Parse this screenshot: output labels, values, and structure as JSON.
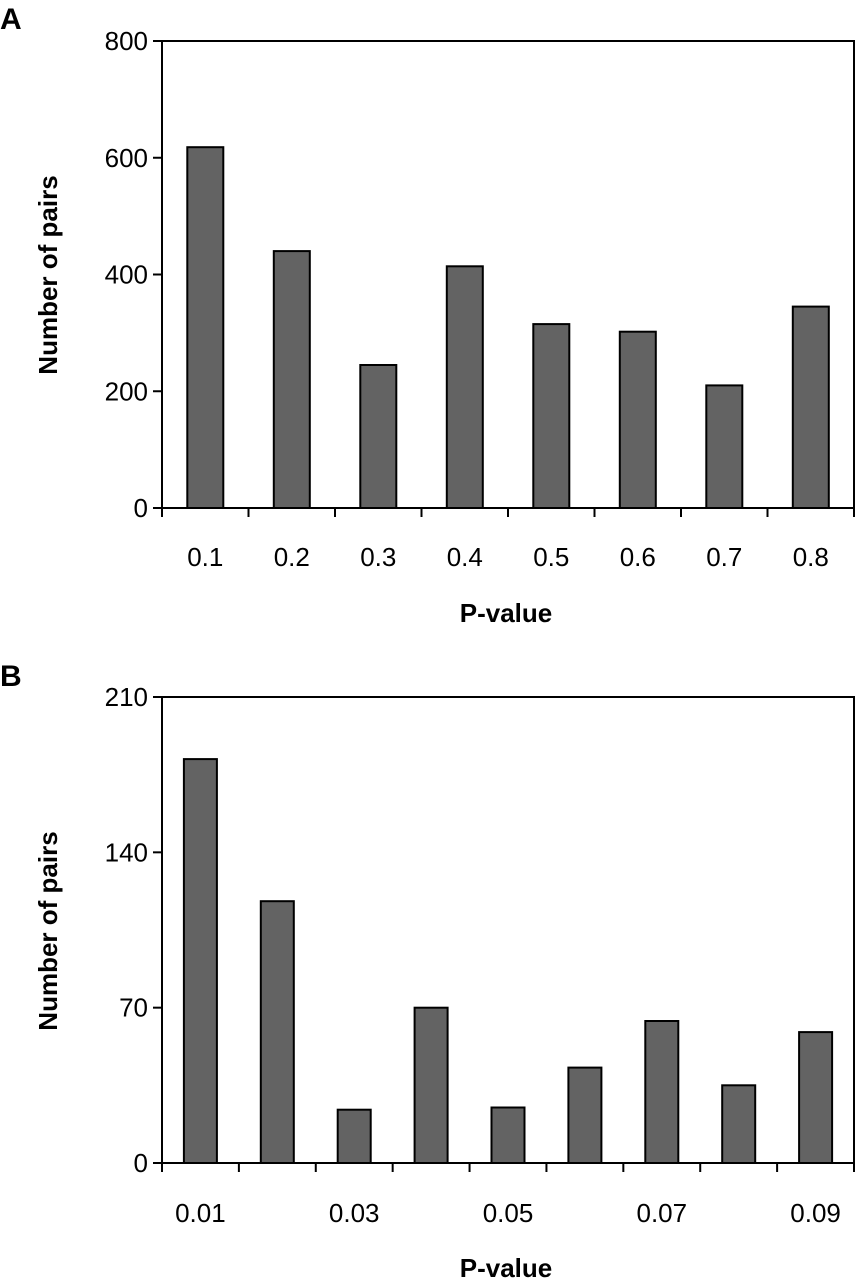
{
  "chart_data": [
    {
      "panel": "A",
      "type": "bar",
      "categories": [
        "0.1",
        "0.2",
        "0.3",
        "0.4",
        "0.5",
        "0.6",
        "0.7",
        "0.8"
      ],
      "values": [
        618,
        440,
        245,
        414,
        315,
        302,
        210,
        345
      ],
      "xlabel": "P-value",
      "ylabel": "Number of pairs",
      "ylim": [
        0,
        800
      ],
      "yticks": [
        "0",
        "200",
        "400",
        "600",
        "800"
      ],
      "xtick_labels_shown": [
        "0.1",
        "0.2",
        "0.3",
        "0.4",
        "0.5",
        "0.6",
        "0.7",
        "0.8"
      ],
      "bar_color": "#636363",
      "grid": false,
      "legend": "none"
    },
    {
      "panel": "B",
      "type": "bar",
      "categories": [
        "0.01",
        "0.02",
        "0.03",
        "0.04",
        "0.05",
        "0.06",
        "0.07",
        "0.08",
        "0.09"
      ],
      "values": [
        182,
        118,
        24,
        70,
        25,
        43,
        64,
        35,
        59
      ],
      "xlabel": "P-value",
      "ylabel": "Number of pairs",
      "ylim": [
        0,
        210
      ],
      "yticks": [
        "0",
        "70",
        "140",
        "210"
      ],
      "xtick_labels_shown": [
        "0.01",
        "",
        "0.03",
        "",
        "0.05",
        "",
        "0.07",
        "",
        "0.09"
      ],
      "bar_color": "#636363",
      "grid": false,
      "legend": "none"
    }
  ]
}
